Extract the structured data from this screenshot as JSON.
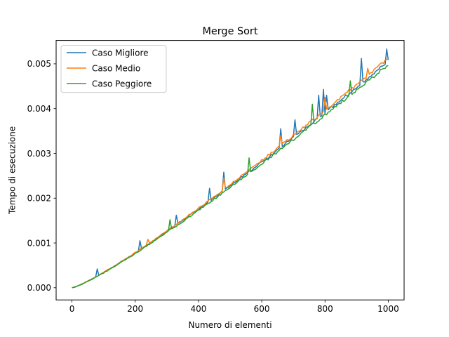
{
  "chart_data": {
    "type": "line",
    "title": "Merge Sort",
    "xlabel": "Numero di elementi",
    "ylabel": "Tempo di esecuzione",
    "xlim": [
      -50,
      1050
    ],
    "ylim": [
      -0.0002725,
      0.0055225
    ],
    "x_ticks": [
      0,
      200,
      400,
      600,
      800,
      1000
    ],
    "x_tick_labels": [
      "0",
      "200",
      "400",
      "600",
      "800",
      "1000"
    ],
    "y_ticks": [
      0.0,
      0.001,
      0.002,
      0.003,
      0.004,
      0.005
    ],
    "y_tick_labels": [
      "0.000",
      "0.001",
      "0.002",
      "0.003",
      "0.004",
      "0.005"
    ],
    "grid": false,
    "legend_position": "top-left",
    "x_range": {
      "start": 0,
      "end": 1000,
      "step": 5
    },
    "series": [
      {
        "name": "Caso Migliore",
        "color": "#1f77b4",
        "base_at_max": 0.00505,
        "spikes": [
          {
            "x": 80,
            "y": 0.00042
          },
          {
            "x": 215,
            "y": 0.00105
          },
          {
            "x": 330,
            "y": 0.00162
          },
          {
            "x": 435,
            "y": 0.00222
          },
          {
            "x": 480,
            "y": 0.00258
          },
          {
            "x": 660,
            "y": 0.00355
          },
          {
            "x": 705,
            "y": 0.00375
          },
          {
            "x": 780,
            "y": 0.0043
          },
          {
            "x": 795,
            "y": 0.00443
          },
          {
            "x": 805,
            "y": 0.0043
          },
          {
            "x": 915,
            "y": 0.00512
          },
          {
            "x": 995,
            "y": 0.00533
          }
        ]
      },
      {
        "name": "Caso Medio",
        "color": "#ff7f0e",
        "base_at_max": 0.00512,
        "spikes": [
          {
            "x": 240,
            "y": 0.00108
          },
          {
            "x": 480,
            "y": 0.00245
          },
          {
            "x": 660,
            "y": 0.0034
          },
          {
            "x": 800,
            "y": 0.00425
          },
          {
            "x": 935,
            "y": 0.0049
          }
        ]
      },
      {
        "name": "Caso Peggiore",
        "color": "#2ca02c",
        "base_at_max": 0.00498,
        "spikes": [
          {
            "x": 310,
            "y": 0.00152
          },
          {
            "x": 560,
            "y": 0.0029
          },
          {
            "x": 760,
            "y": 0.0041
          },
          {
            "x": 880,
            "y": 0.00462
          }
        ]
      }
    ]
  }
}
